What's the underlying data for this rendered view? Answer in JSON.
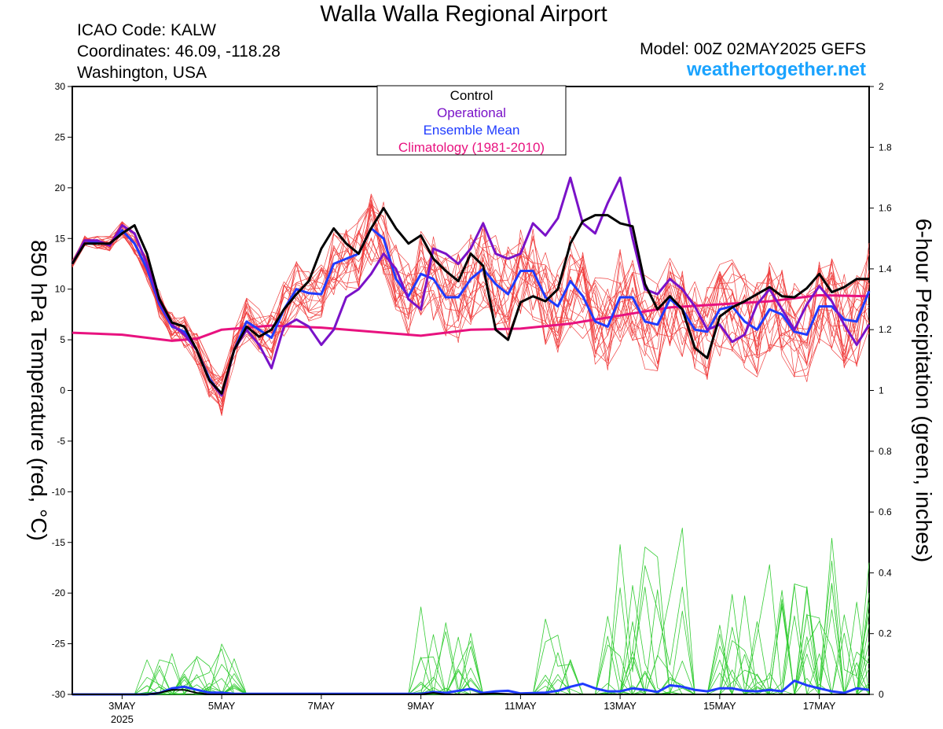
{
  "header": {
    "title": "Walla Walla Regional Airport",
    "icao": "ICAO Code: KALW",
    "coords": "Coordinates: 46.09, -118.28",
    "region": "Washington, USA",
    "model": "Model: 00Z 02MAY2025 GEFS",
    "site": "weathertogether.net"
  },
  "colors": {
    "control": "#000000",
    "operational": "#7a12c8",
    "mean": "#1f3bff",
    "climatology": "#e8127f",
    "ensemble_temp": "#f04040",
    "ensemble_precip": "#33cc33",
    "site": "#1aa3ff"
  },
  "chart_data": {
    "type": "line",
    "ylabel_left": "850 hPa Temperature (red, °C)",
    "ylabel_right": "6-hour Precipitation (green, inches)",
    "ylim_left": [
      -30,
      30
    ],
    "ylim_right": [
      0,
      2
    ],
    "yticks_left": [
      30,
      25,
      20,
      15,
      10,
      5,
      0,
      -5,
      -10,
      -15,
      -20,
      -25,
      -30
    ],
    "yticks_right": [
      "2",
      "1.8",
      "1.6",
      "1.4",
      "1.2",
      "1",
      "0.8",
      "0.6",
      "0.4",
      "0.2",
      "0"
    ],
    "xlim_days": [
      0,
      16
    ],
    "x_ticks": [
      {
        "day": 1,
        "label": "3MAY",
        "sub": "2025"
      },
      {
        "day": 3,
        "label": "5MAY"
      },
      {
        "day": 5,
        "label": "7MAY"
      },
      {
        "day": 7,
        "label": "9MAY"
      },
      {
        "day": 9,
        "label": "11MAY"
      },
      {
        "day": 11,
        "label": "13MAY"
      },
      {
        "day": 13,
        "label": "15MAY"
      },
      {
        "day": 15,
        "label": "17MAY"
      }
    ],
    "legend": [
      "Control",
      "Operational",
      "Ensemble Mean",
      "Climatology (1981-2010)"
    ],
    "legend_position": "top-center",
    "series": [
      {
        "name": "Control",
        "values": [
          [
            0,
            12.5
          ],
          [
            0.25,
            14.5
          ],
          [
            0.5,
            14.5
          ],
          [
            0.75,
            14.5
          ],
          [
            1,
            15.5
          ],
          [
            1.25,
            16.3
          ],
          [
            1.5,
            13.5
          ],
          [
            1.75,
            9
          ],
          [
            2,
            6.7
          ],
          [
            2.25,
            6.3
          ],
          [
            2.5,
            4
          ],
          [
            2.75,
            1
          ],
          [
            3,
            -0.3
          ],
          [
            3.25,
            4
          ],
          [
            3.5,
            6.3
          ],
          [
            3.75,
            5.3
          ],
          [
            4,
            6
          ],
          [
            4.25,
            8
          ],
          [
            4.5,
            9.5
          ],
          [
            4.75,
            10.8
          ],
          [
            5,
            14
          ],
          [
            5.25,
            16
          ],
          [
            5.5,
            14.5
          ],
          [
            5.75,
            13.5
          ],
          [
            6,
            16
          ],
          [
            6.25,
            18
          ],
          [
            6.5,
            16
          ],
          [
            6.75,
            14.5
          ],
          [
            7,
            15.3
          ],
          [
            7.25,
            13
          ],
          [
            7.5,
            11.8
          ],
          [
            7.75,
            10.8
          ],
          [
            8,
            13.5
          ],
          [
            8.25,
            12.3
          ],
          [
            8.5,
            6
          ],
          [
            8.75,
            5
          ],
          [
            9,
            8.7
          ],
          [
            9.25,
            9.3
          ],
          [
            9.5,
            8.8
          ],
          [
            9.75,
            10
          ],
          [
            10,
            14.5
          ],
          [
            10.25,
            16.7
          ],
          [
            10.5,
            17.3
          ],
          [
            10.75,
            17.3
          ],
          [
            11,
            16.5
          ],
          [
            11.25,
            16.2
          ],
          [
            11.5,
            10.5
          ],
          [
            11.75,
            8
          ],
          [
            12,
            9.3
          ],
          [
            12.25,
            8
          ],
          [
            12.5,
            4.2
          ],
          [
            12.75,
            3.2
          ],
          [
            13,
            7.3
          ],
          [
            13.25,
            8.2
          ],
          [
            13.5,
            8.8
          ],
          [
            13.75,
            9.5
          ],
          [
            14,
            10.2
          ],
          [
            14.25,
            9.3
          ],
          [
            14.5,
            9.2
          ],
          [
            14.75,
            10.1
          ],
          [
            15,
            11.5
          ],
          [
            15.25,
            9.7
          ],
          [
            15.5,
            10.2
          ],
          [
            15.75,
            11
          ],
          [
            16,
            11
          ]
        ]
      },
      {
        "name": "Operational",
        "values": [
          [
            0,
            12.5
          ],
          [
            0.25,
            14.8
          ],
          [
            0.5,
            14.8
          ],
          [
            0.75,
            14.3
          ],
          [
            1,
            16.3
          ],
          [
            1.25,
            15.5
          ],
          [
            1.5,
            12.5
          ],
          [
            1.75,
            8.8
          ],
          [
            2,
            6.5
          ],
          [
            2.25,
            5.5
          ],
          [
            2.5,
            4
          ],
          [
            2.75,
            1
          ],
          [
            3,
            -0.5
          ],
          [
            3.25,
            4
          ],
          [
            3.5,
            6
          ],
          [
            3.75,
            4.5
          ],
          [
            4,
            2.2
          ],
          [
            4.25,
            6.3
          ],
          [
            4.5,
            7
          ],
          [
            4.75,
            6.3
          ],
          [
            5,
            4.5
          ],
          [
            5.25,
            6
          ],
          [
            5.5,
            9.2
          ],
          [
            5.75,
            10
          ],
          [
            6,
            11.5
          ],
          [
            6.25,
            13.5
          ],
          [
            6.5,
            12
          ],
          [
            6.75,
            9
          ],
          [
            7,
            8
          ],
          [
            7.25,
            14
          ],
          [
            7.5,
            13.5
          ],
          [
            7.75,
            12.5
          ],
          [
            8,
            14
          ],
          [
            8.25,
            16.5
          ],
          [
            8.5,
            13.5
          ],
          [
            8.75,
            13
          ],
          [
            9,
            13.5
          ],
          [
            9.25,
            16.5
          ],
          [
            9.5,
            15.3
          ],
          [
            9.75,
            17
          ],
          [
            10,
            21
          ],
          [
            10.25,
            16.5
          ],
          [
            10.5,
            15.5
          ],
          [
            10.75,
            18.5
          ],
          [
            11,
            21
          ],
          [
            11.25,
            15
          ],
          [
            11.5,
            10
          ],
          [
            11.75,
            9.5
          ],
          [
            12,
            11
          ],
          [
            12.25,
            10
          ],
          [
            12.5,
            8.3
          ],
          [
            12.75,
            6
          ],
          [
            13,
            6.5
          ],
          [
            13.25,
            4.8
          ],
          [
            13.5,
            5.5
          ],
          [
            13.75,
            8.5
          ],
          [
            14,
            10
          ],
          [
            14.25,
            8
          ],
          [
            14.5,
            6
          ],
          [
            14.75,
            8.5
          ],
          [
            15,
            10.3
          ],
          [
            15.25,
            8.8
          ],
          [
            15.5,
            6.5
          ],
          [
            15.75,
            4.5
          ],
          [
            16,
            6.5
          ]
        ]
      },
      {
        "name": "Ensemble Mean",
        "values": [
          [
            0,
            12.5
          ],
          [
            0.25,
            14.8
          ],
          [
            0.5,
            14.6
          ],
          [
            0.75,
            14.4
          ],
          [
            1,
            15.8
          ],
          [
            1.25,
            14.5
          ],
          [
            1.5,
            12
          ],
          [
            1.75,
            8.5
          ],
          [
            2,
            6.3
          ],
          [
            2.25,
            5.8
          ],
          [
            2.5,
            4
          ],
          [
            2.75,
            1.2
          ],
          [
            3,
            -0.5
          ],
          [
            3.25,
            4
          ],
          [
            3.5,
            6.8
          ],
          [
            3.75,
            6
          ],
          [
            4,
            5.2
          ],
          [
            4.25,
            8
          ],
          [
            4.5,
            10
          ],
          [
            4.75,
            9.6
          ],
          [
            5,
            9.5
          ],
          [
            5.25,
            12.5
          ],
          [
            5.75,
            13.5
          ],
          [
            6,
            16
          ],
          [
            6.25,
            15
          ],
          [
            6.5,
            11
          ],
          [
            6.75,
            9.3
          ],
          [
            7,
            11.5
          ],
          [
            7.25,
            11
          ],
          [
            7.5,
            9.2
          ],
          [
            7.75,
            9.2
          ],
          [
            8,
            11
          ],
          [
            8.25,
            12
          ],
          [
            8.5,
            10.5
          ],
          [
            8.75,
            9.5
          ],
          [
            9,
            11.8
          ],
          [
            9.25,
            11.8
          ],
          [
            9.5,
            9.2
          ],
          [
            9.75,
            8.3
          ],
          [
            10,
            10.8
          ],
          [
            10.25,
            9.3
          ],
          [
            10.5,
            6.8
          ],
          [
            10.75,
            6.3
          ],
          [
            11,
            9.2
          ],
          [
            11.25,
            9.2
          ],
          [
            11.5,
            6.8
          ],
          [
            11.75,
            6.5
          ],
          [
            12,
            9
          ],
          [
            12.25,
            8
          ],
          [
            12.5,
            6
          ],
          [
            12.75,
            5.8
          ],
          [
            13,
            8
          ],
          [
            13.25,
            8.3
          ],
          [
            13.5,
            6.8
          ],
          [
            13.75,
            6
          ],
          [
            14,
            8
          ],
          [
            14.25,
            7.5
          ],
          [
            14.5,
            5.8
          ],
          [
            14.75,
            5.5
          ],
          [
            15,
            8.3
          ],
          [
            15.25,
            8.3
          ],
          [
            15.5,
            7
          ],
          [
            15.75,
            6.8
          ],
          [
            16,
            9.8
          ]
        ]
      },
      {
        "name": "Climatology (1981-2010)",
        "values": [
          [
            0,
            5.7
          ],
          [
            1,
            5.5
          ],
          [
            2,
            4.9
          ],
          [
            2.5,
            5.1
          ],
          [
            3,
            6
          ],
          [
            4,
            6.4
          ],
          [
            5,
            6.2
          ],
          [
            6,
            5.8
          ],
          [
            7,
            5.4
          ],
          [
            8,
            6
          ],
          [
            9,
            6.1
          ],
          [
            10,
            6.6
          ],
          [
            11,
            7.4
          ],
          [
            12,
            8.2
          ],
          [
            13,
            8.5
          ],
          [
            14,
            8.8
          ],
          [
            15,
            9.4
          ],
          [
            16,
            9.3
          ]
        ]
      },
      {
        "name": "Control precipitation",
        "values": [
          [
            0,
            0
          ],
          [
            1.5,
            0
          ],
          [
            1.75,
            0.005
          ],
          [
            2,
            0.015
          ],
          [
            2.25,
            0.015
          ],
          [
            2.5,
            0.005
          ],
          [
            2.75,
            0
          ],
          [
            7,
            0
          ],
          [
            7.25,
            0.005
          ],
          [
            7.5,
            0
          ],
          [
            8,
            0
          ],
          [
            8.5,
            0.003
          ],
          [
            9,
            0
          ],
          [
            12,
            0
          ],
          [
            16,
            0
          ]
        ]
      },
      {
        "name": "Ensemble mean precipitation",
        "values": [
          [
            0,
            0
          ],
          [
            1.5,
            0
          ],
          [
            1.75,
            0.005
          ],
          [
            2,
            0.02
          ],
          [
            2.25,
            0.025
          ],
          [
            2.5,
            0.015
          ],
          [
            2.75,
            0.006
          ],
          [
            3,
            0.006
          ],
          [
            3.25,
            0.002
          ],
          [
            7,
            0.002
          ],
          [
            7.25,
            0.008
          ],
          [
            7.5,
            0.005
          ],
          [
            7.75,
            0.012
          ],
          [
            8,
            0.018
          ],
          [
            8.25,
            0.005
          ],
          [
            8.5,
            0.01
          ],
          [
            8.75,
            0.012
          ],
          [
            9,
            0.003
          ],
          [
            9.5,
            0.006
          ],
          [
            9.75,
            0.012
          ],
          [
            10,
            0.025
          ],
          [
            10.25,
            0.035
          ],
          [
            10.5,
            0.02
          ],
          [
            10.75,
            0.01
          ],
          [
            11,
            0.01
          ],
          [
            11.25,
            0.02
          ],
          [
            11.5,
            0.015
          ],
          [
            11.75,
            0.008
          ],
          [
            12,
            0.03
          ],
          [
            12.25,
            0.025
          ],
          [
            12.5,
            0.015
          ],
          [
            12.75,
            0.01
          ],
          [
            13,
            0.02
          ],
          [
            13.25,
            0.02
          ],
          [
            13.5,
            0.012
          ],
          [
            13.75,
            0.01
          ],
          [
            14,
            0.015
          ],
          [
            14.25,
            0.01
          ],
          [
            14.5,
            0.045
          ],
          [
            14.75,
            0.03
          ],
          [
            15,
            0.02
          ],
          [
            15.25,
            0.01
          ],
          [
            15.5,
            0.005
          ],
          [
            15.75,
            0.02
          ],
          [
            16,
            0.015
          ]
        ]
      }
    ]
  }
}
